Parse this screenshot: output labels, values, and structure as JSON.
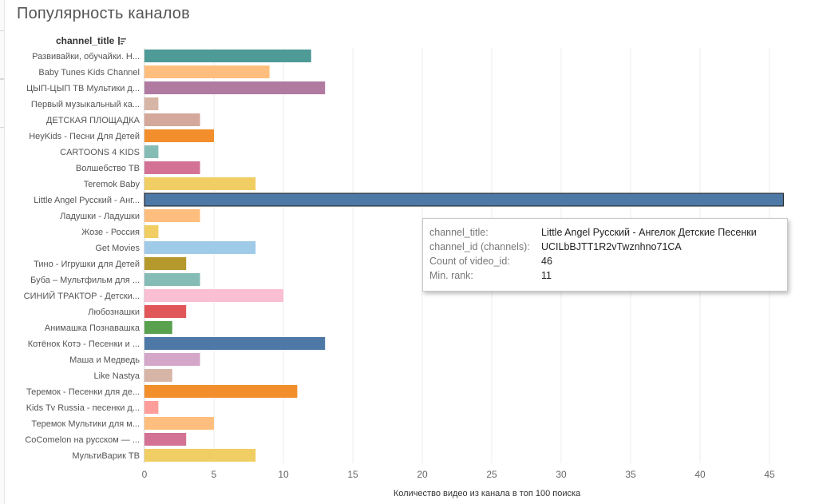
{
  "page": {
    "title": "Популярность каналов",
    "field_header": "channel_title"
  },
  "chart_data": {
    "type": "bar",
    "orientation": "horizontal",
    "xlabel": "Количество видео из канала в топ 100 поиска",
    "ylabel": "channel_title",
    "xlim": [
      0,
      47
    ],
    "x_ticks": [
      0,
      5,
      10,
      15,
      20,
      25,
      30,
      35,
      40,
      45
    ],
    "grid": true,
    "highlighted_category": "Little Angel Русский - Анг...",
    "categories": [
      "Развивайки, обучайки. Н...",
      "Baby Tunes Kids Channel",
      "ЦЫП-ЦЫП ТВ Мультики д...",
      "Первый музыкальный ка...",
      "ДЕТСКАЯ ПЛОЩАДКА",
      "HeyKids - Песни Для Детей",
      "CARTOONS 4 KIDS",
      "Волшебство ТВ",
      "Teremok Baby",
      "Little Angel Русский - Анг...",
      "Ладушки - Ладушки",
      "Жозе - Россия",
      "Get Movies",
      "Тино - Игрушки для Детей",
      "Буба – Мультфильм для ...",
      "СИНИЙ ТРАКТОР - Детски...",
      "Любознашки",
      "Анимашка Познавашка",
      "Котёнок Котэ - Песенки и ...",
      "Маша и Медведь",
      "Like Nastya",
      "Теремок - Песенки для де...",
      "Kids Tv Russia - песенки д...",
      "Теремок Мультики для м...",
      "CoComelon на русском — ...",
      "МультиВарик ТВ"
    ],
    "values": [
      12,
      9,
      13,
      1,
      4,
      5,
      1,
      4,
      8,
      46,
      4,
      1,
      8,
      3,
      4,
      10,
      3,
      2,
      13,
      4,
      2,
      11,
      1,
      5,
      3,
      8
    ],
    "colors": [
      "#4e9a96",
      "#ffbe7d",
      "#b07aa1",
      "#d7b5a6",
      "#d4a89a",
      "#f28e2b",
      "#86bcb6",
      "#d37295",
      "#f1ce63",
      "#4e79a7",
      "#ffbe7d",
      "#f1ce63",
      "#a0cbe8",
      "#b6992d",
      "#86bcb6",
      "#fabfd2",
      "#e15759",
      "#59a14f",
      "#4e79a7",
      "#d4a6c8",
      "#d7b5a6",
      "#f28e2b",
      "#ff9d9a",
      "#ffbe7d",
      "#d37295",
      "#f1ce63"
    ]
  },
  "tooltip": {
    "rows": [
      {
        "key": "channel_title:",
        "value": "Little Angel Русский - Ангелок Детские Песенки"
      },
      {
        "key": "channel_id (channels):",
        "value": "UCILbBJTT1R2vTwznhno71CA"
      },
      {
        "key": "Count of video_id:",
        "value": "46"
      },
      {
        "key": "Min. rank:",
        "value": "11"
      }
    ]
  }
}
